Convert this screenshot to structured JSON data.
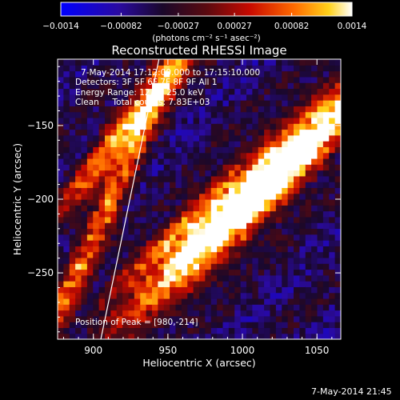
{
  "chart_data": {
    "type": "heatmap",
    "title": "Reconstructed RHESSI Image",
    "xlabel": "Heliocentric X (arcsec)",
    "ylabel": "Heliocentric Y (arcsec)",
    "xlim": [
      876,
      1066
    ],
    "ylim": [
      -295,
      -105
    ],
    "x_ticks": [
      900,
      950,
      1000,
      1050
    ],
    "x_tick_labels": [
      "900",
      "950",
      "1000",
      "1050"
    ],
    "y_ticks": [
      -150,
      -200,
      -250
    ],
    "y_tick_labels": [
      "−150",
      "−200",
      "−250"
    ],
    "colorbar": {
      "range": [
        -0.0014,
        0.0014
      ],
      "ticks": [
        -0.0014,
        -0.00082,
        -0.00027,
        0.00027,
        0.00082,
        0.0014
      ],
      "tick_labels": [
        "−0.0014",
        "−0.00082",
        "−0.00027",
        "0.00027",
        "0.00082",
        "0.0014"
      ],
      "units_label": "(photons cm⁻² s⁻¹ asec⁻²)"
    },
    "grid": false,
    "peak_position": [
      980,
      -214
    ],
    "limb_line": {
      "x": [
        905,
        944
      ],
      "y": [
        -295,
        -105
      ]
    },
    "bright_ridges": [
      {
        "center": [
          985,
          -212
        ],
        "length_arcsec": 130,
        "width_arcsec": 22,
        "angle_deg": 48,
        "peak": 1.0
      },
      {
        "center": [
          1045,
          -165
        ],
        "length_arcsec": 150,
        "width_arcsec": 20,
        "angle_deg": 48,
        "peak": 0.9
      },
      {
        "center": [
          930,
          -140
        ],
        "length_arcsec": 120,
        "width_arcsec": 14,
        "angle_deg": 52,
        "peak": 0.85
      },
      {
        "center": [
          905,
          -215
        ],
        "length_arcsec": 170,
        "width_arcsec": 12,
        "angle_deg": 65,
        "peak": 0.7
      },
      {
        "center": [
          940,
          -235
        ],
        "length_arcsec": 90,
        "width_arcsec": 10,
        "angle_deg": 45,
        "peak": 0.5
      }
    ]
  },
  "annotations": {
    "time_range": "7-May-2014 17:12:00.000 to 17:15:10.000",
    "detectors": "Detectors: 3F 5F 6F 7F 8F 9F All 1",
    "energy_range": "Energy Range: 12.0 - 25.0 keV",
    "clean_counts": "Clean     Total counts: 7.83E+03",
    "peak_position": "Position of Peak = [980,-214]"
  },
  "footer": {
    "timestamp": "7-May-2014 21:45"
  }
}
